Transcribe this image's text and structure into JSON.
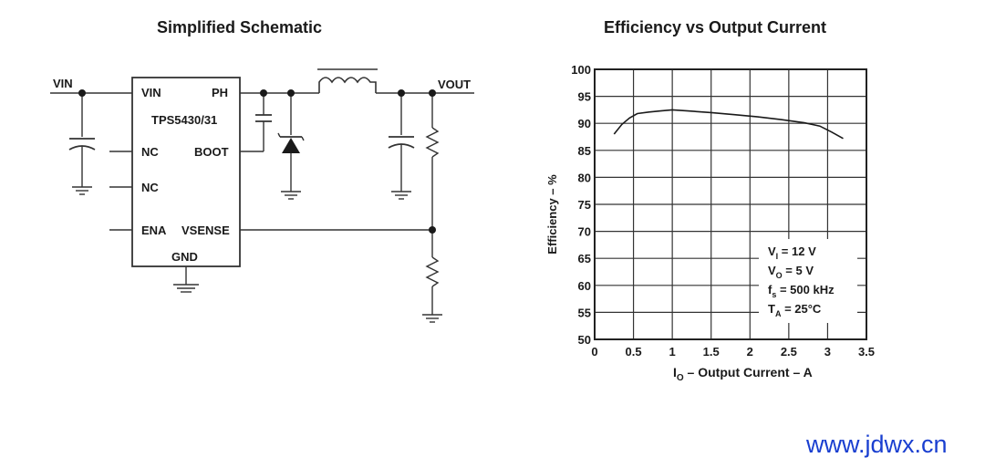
{
  "schematic": {
    "title": "Simplified Schematic",
    "vin_label": "VIN",
    "vout_label": "VOUT",
    "chip": {
      "name": "TPS5430/31",
      "pin_vin": "VIN",
      "pin_ph": "PH",
      "pin_nc1": "NC",
      "pin_boot": "BOOT",
      "pin_nc2": "NC",
      "pin_ena": "ENA",
      "pin_vsense": "VSENSE",
      "pin_gnd": "GND"
    }
  },
  "chart": {
    "title": "Efficiency vs Output Current",
    "ylabel": "Efficiency – %",
    "xlabel_main": "I",
    "xlabel_sub": "O",
    "xlabel_rest": " – Output Current – A",
    "conditions": [
      {
        "main": "V",
        "sub": "I",
        "rest": " = 12 V"
      },
      {
        "main": "V",
        "sub": "O",
        "rest": " = 5 V"
      },
      {
        "main": "f",
        "sub": "s",
        "rest": " = 500 kHz"
      },
      {
        "main": "T",
        "sub": "A",
        "rest": " = 25°C"
      }
    ]
  },
  "chart_data": {
    "type": "line",
    "title": "Efficiency vs Output Current",
    "xlabel": "IO – Output Current – A",
    "ylabel": "Efficiency – %",
    "xlim": [
      0,
      3.5
    ],
    "ylim": [
      50,
      100
    ],
    "xticks": [
      0,
      0.5,
      1,
      1.5,
      2,
      2.5,
      3,
      3.5
    ],
    "yticks": [
      50,
      55,
      60,
      65,
      70,
      75,
      80,
      85,
      90,
      95,
      100
    ],
    "grid": true,
    "series": [
      {
        "x": [
          0.25,
          0.35,
          0.45,
          0.55,
          0.7,
          0.85,
          1.0,
          1.2,
          1.5,
          1.8,
          2.1,
          2.4,
          2.7,
          2.9,
          3.05,
          3.2
        ],
        "y": [
          88.0,
          89.8,
          91.0,
          91.8,
          92.1,
          92.3,
          92.5,
          92.3,
          92.0,
          91.6,
          91.2,
          90.7,
          90.1,
          89.5,
          88.4,
          87.2
        ]
      }
    ]
  },
  "watermark": "www.jdwx.cn",
  "colors": {
    "ink": "#1a1a1a",
    "watermark": "#1a3fd0"
  }
}
